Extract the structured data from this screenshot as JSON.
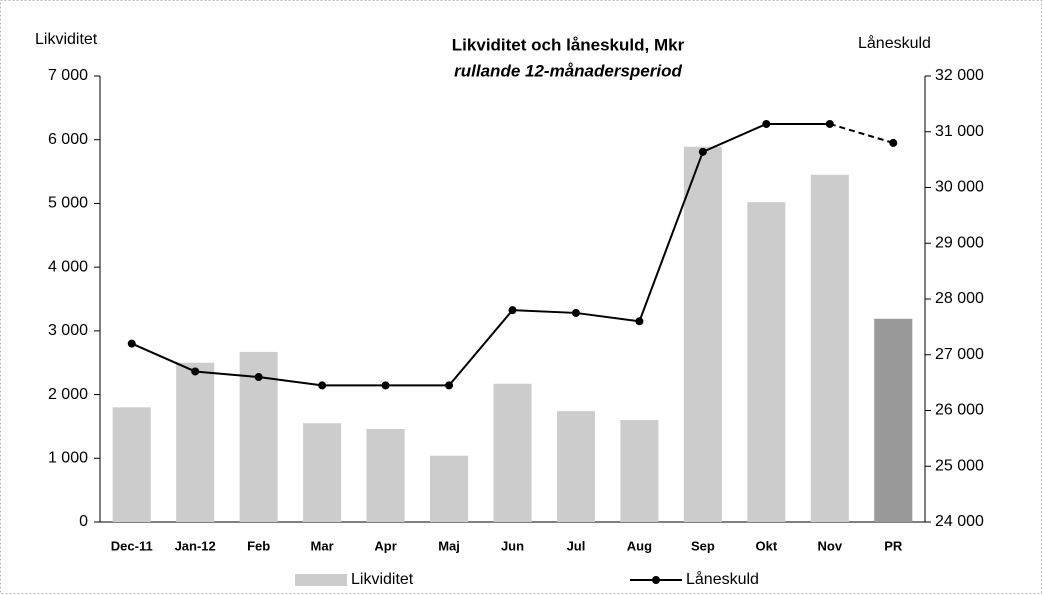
{
  "chart_data": {
    "type": "bar_line",
    "title": "Likviditet och låneskuld,  Mkr",
    "subtitle": "rullande 12-månadersperiod",
    "y_label": "Likviditet",
    "y2_label": "Låneskuld",
    "categories": [
      "Dec-11",
      "Jan-12",
      "Feb",
      "Mar",
      "Apr",
      "Maj",
      "Jun",
      "Jul",
      "Aug",
      "Sep",
      "Okt",
      "Nov",
      "PR"
    ],
    "series": [
      {
        "name": "Likviditet",
        "type": "bar",
        "color": "#cccccc",
        "colors": [
          "#cccccc",
          "#cccccc",
          "#cccccc",
          "#cccccc",
          "#cccccc",
          "#cccccc",
          "#cccccc",
          "#cccccc",
          "#cccccc",
          "#cccccc",
          "#cccccc",
          "#cccccc",
          "#999999"
        ],
        "values": [
          1800,
          2500,
          2670,
          1550,
          1460,
          1040,
          2170,
          1740,
          1600,
          5890,
          5020,
          5450,
          3190
        ]
      },
      {
        "name": "Låneskuld",
        "type": "line",
        "axis": "y2",
        "color": "#000000",
        "values": [
          27200,
          26700,
          26600,
          26450,
          26450,
          26450,
          27800,
          27750,
          27600,
          30640,
          31140,
          31140,
          30800
        ]
      }
    ],
    "ylim": [
      0,
      7000
    ],
    "yticks": [
      0,
      {
        "value": 1000,
        "label": "1 000"
      },
      {
        "value": 2000,
        "label": "2 000"
      },
      {
        "value": 3000,
        "label": "3 000"
      },
      {
        "value": 4000,
        "label": "4 000"
      },
      {
        "value": 5000,
        "label": "5 000"
      },
      {
        "value": 6000,
        "label": "6 000"
      },
      {
        "value": 7000,
        "label": "7 000"
      }
    ],
    "y2lim": [
      24000,
      32000
    ],
    "y2ticks": [
      {
        "value": 24000,
        "label": "24 000"
      },
      {
        "value": 25000,
        "label": "25 000"
      },
      {
        "value": 26000,
        "label": "26 000"
      },
      {
        "value": 27000,
        "label": "27 000"
      },
      {
        "value": 28000,
        "label": "28 000"
      },
      {
        "value": 29000,
        "label": "29 000"
      },
      {
        "value": 30000,
        "label": "30 000"
      },
      {
        "value": 31000,
        "label": "31 000"
      },
      {
        "value": 32000,
        "label": "32 000"
      }
    ]
  }
}
